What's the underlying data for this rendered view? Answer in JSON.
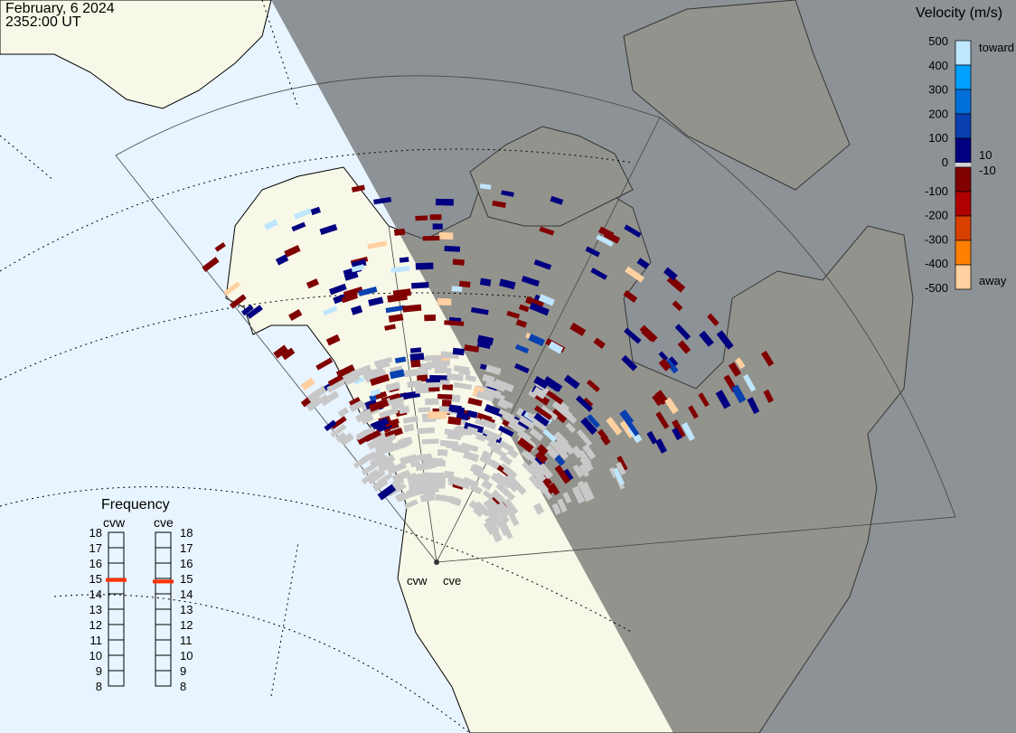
{
  "header": {
    "date": "February, 6 2024",
    "time": "2352:00 UT"
  },
  "colors": {
    "ocean": "#e8f4ff",
    "land_day": "#f8f8e8",
    "night": "#7a7a7a",
    "ground_scatter": "#c8c8c8"
  },
  "velocity_scale": {
    "title": "Velocity (m/s)",
    "ticks": [
      "500",
      "400",
      "300",
      "200",
      "100",
      "0",
      "-100",
      "-200",
      "-300",
      "-400",
      "-500"
    ],
    "labels": {
      "top": "toward",
      "bottom": "away",
      "plus": "10",
      "minus": "-10"
    },
    "colors": [
      "#bfe6ff",
      "#00a0ff",
      "#0070d8",
      "#0840b0",
      "#000080",
      "#d0d0d0",
      "#800000",
      "#b00000",
      "#d84000",
      "#ff8000",
      "#ffd0a0"
    ]
  },
  "frequency": {
    "title": "Frequency",
    "ticks": [
      "18",
      "17",
      "16",
      "15",
      "14",
      "13",
      "12",
      "11",
      "10",
      "9",
      "8"
    ],
    "radars": [
      {
        "name": "cvw",
        "value_mhz": 14.9
      },
      {
        "name": "cve",
        "value_mhz": 14.8
      }
    ]
  },
  "radar_labels": [
    "cvw",
    "cve"
  ]
}
